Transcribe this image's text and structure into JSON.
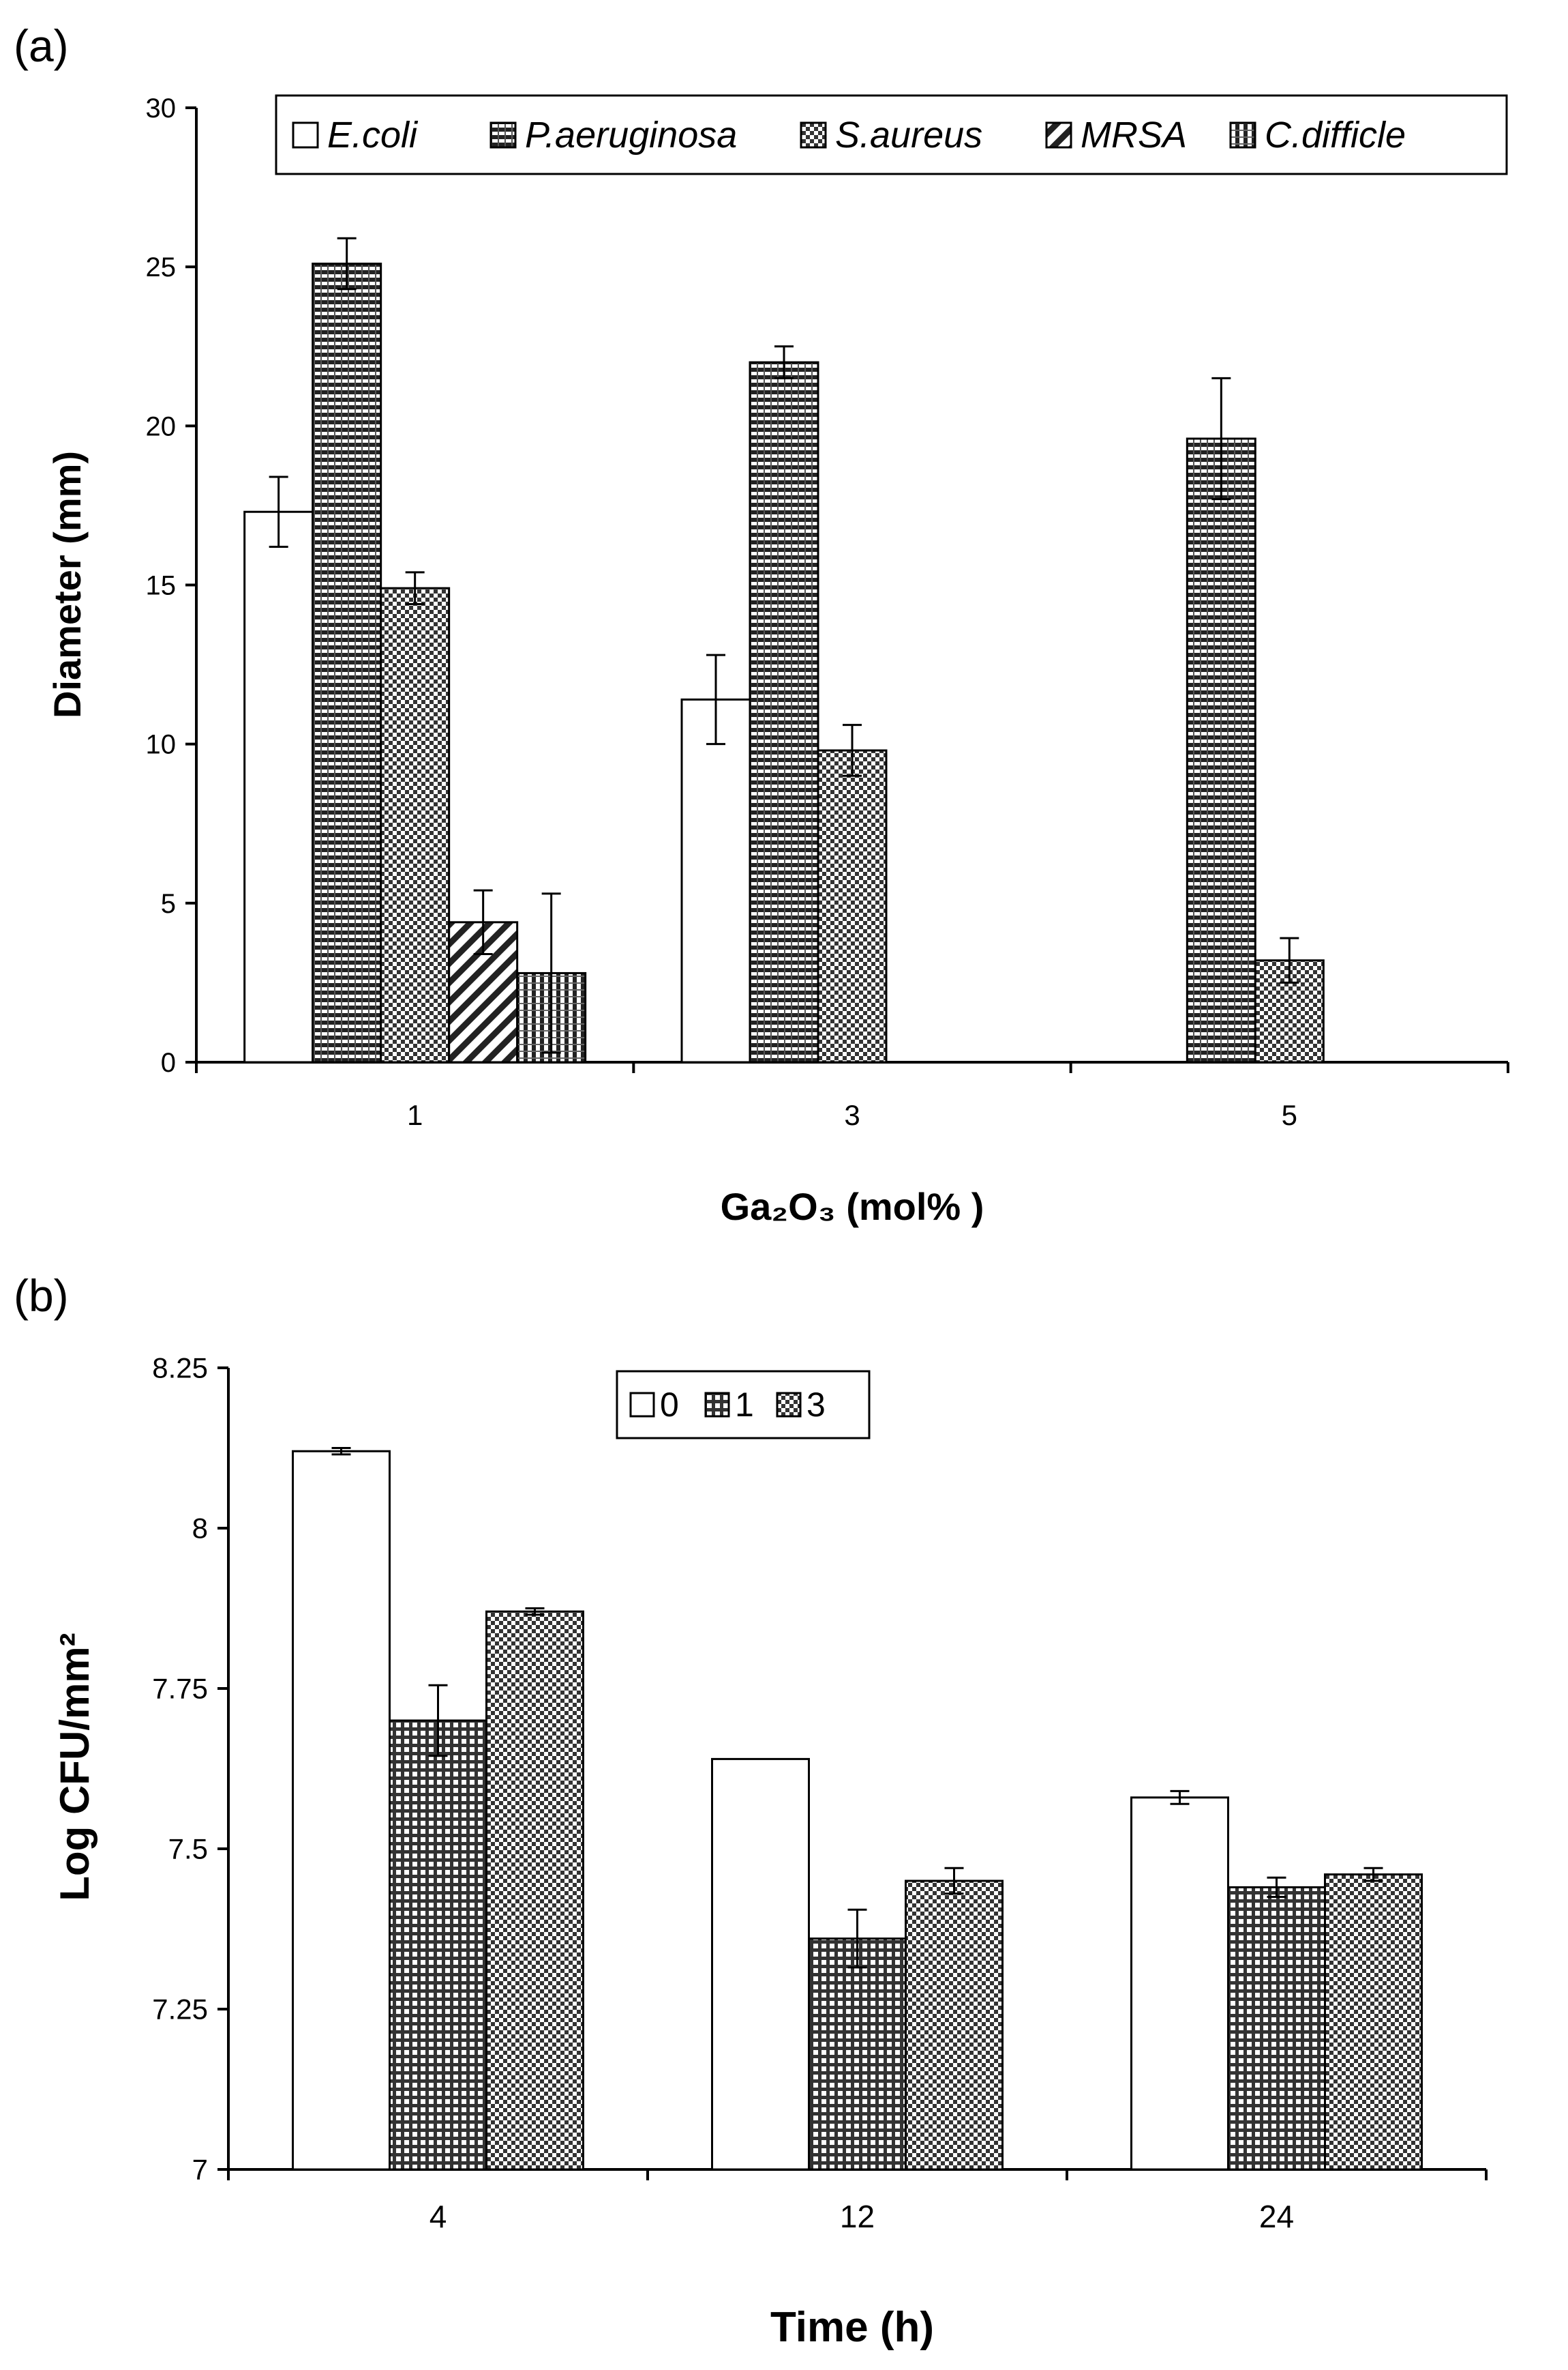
{
  "chart_data": [
    {
      "panel_label": "(a)",
      "type": "bar",
      "categories": [
        "1",
        "3",
        "5"
      ],
      "xlabel": "Ga₂O₃ (mol% )",
      "ylabel": "Diameter (mm)",
      "ylim": [
        0,
        30
      ],
      "yticks": [
        "0",
        "5",
        "10",
        "15",
        "20",
        "25",
        "30"
      ],
      "legend": "top-right",
      "series": [
        {
          "name": "E.coli",
          "pattern": "empty",
          "values": [
            17.3,
            11.4,
            null
          ],
          "errors": [
            1.1,
            1.4,
            null
          ]
        },
        {
          "name": "P.aeruginosa",
          "pattern": "hlines",
          "values": [
            25.1,
            22.0,
            19.6
          ],
          "errors": [
            0.8,
            0.5,
            1.9
          ]
        },
        {
          "name": "S.aureus",
          "pattern": "checker",
          "values": [
            14.9,
            9.8,
            3.2
          ],
          "errors": [
            0.5,
            0.8,
            0.7
          ]
        },
        {
          "name": "MRSA",
          "pattern": "diagonal",
          "values": [
            4.4,
            null,
            null
          ],
          "errors": [
            1.0,
            null,
            null
          ]
        },
        {
          "name": "C.difficle",
          "pattern": "vlines",
          "values": [
            2.8,
            null,
            null
          ],
          "errors": [
            2.5,
            null,
            null
          ]
        }
      ]
    },
    {
      "panel_label": "(b)",
      "type": "bar",
      "categories": [
        "4",
        "12",
        "24"
      ],
      "xlabel": "Time (h)",
      "ylabel": "Log CFU/mm²",
      "ylim": [
        7,
        8.25
      ],
      "yticks": [
        "7",
        "7.25",
        "7.5",
        "7.75",
        "8",
        "8.25"
      ],
      "legend": "top-center",
      "series": [
        {
          "name": "0",
          "pattern": "empty",
          "values": [
            8.12,
            7.64,
            7.58
          ],
          "errors": [
            0.005,
            0.0,
            0.01
          ]
        },
        {
          "name": "1",
          "pattern": "grid",
          "values": [
            7.7,
            7.36,
            7.44
          ],
          "errors": [
            0.055,
            0.045,
            0.015
          ]
        },
        {
          "name": "3",
          "pattern": "checker",
          "values": [
            7.87,
            7.45,
            7.46
          ],
          "errors": [
            0.005,
            0.02,
            0.01
          ]
        }
      ]
    }
  ]
}
